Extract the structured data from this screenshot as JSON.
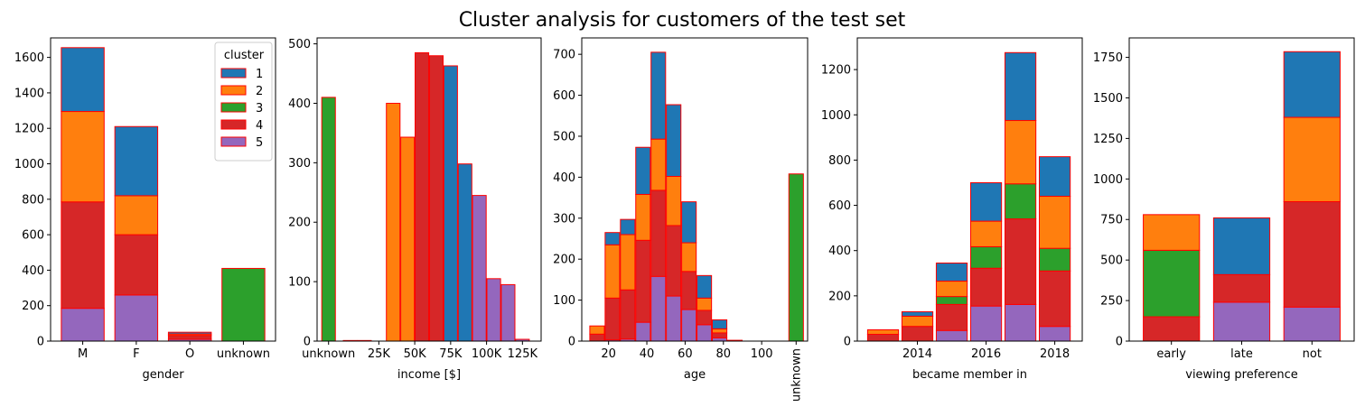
{
  "title": "Cluster analysis for customers of the test set",
  "colors": {
    "cluster_fill": [
      "#1f77b4",
      "#ff7f0e",
      "#2ca02c",
      "#d62728",
      "#9467bd"
    ],
    "bar_edge": "#ff0000"
  },
  "legend": {
    "title": "cluster",
    "entries": [
      "1",
      "2",
      "3",
      "4",
      "5"
    ],
    "placement": "upper right of first panel"
  },
  "chart_data": [
    {
      "type": "bar",
      "stacked": true,
      "xlabel": "gender",
      "categories": [
        "M",
        "F",
        "O",
        "unknown"
      ],
      "ylim": [
        0,
        1710
      ],
      "yticks": [
        0,
        200,
        400,
        600,
        800,
        1000,
        1200,
        1400,
        1600
      ],
      "series": [
        {
          "name": "5",
          "values": [
            185,
            260,
            10,
            0
          ]
        },
        {
          "name": "4",
          "values": [
            600,
            340,
            22,
            0
          ]
        },
        {
          "name": "3",
          "values": [
            0,
            0,
            0,
            410
          ]
        },
        {
          "name": "2",
          "values": [
            510,
            220,
            8,
            0
          ]
        },
        {
          "name": "1",
          "values": [
            360,
            390,
            10,
            0
          ]
        }
      ]
    },
    {
      "type": "bar",
      "stacked": true,
      "xlabel": "income [$]",
      "xticks": [
        "unknown",
        "25K",
        "50K",
        "75K",
        "100K",
        "125K"
      ],
      "xlim": [
        -18000,
        138000
      ],
      "ylim": [
        0,
        510
      ],
      "yticks": [
        0,
        100,
        200,
        300,
        400,
        500
      ],
      "bin_width": 9500,
      "bins": [
        {
          "x": -10000,
          "total": 410,
          "parts": [
            0,
            0,
            410,
            0,
            0
          ]
        },
        {
          "x": 5000,
          "total": 1,
          "parts": [
            0,
            0,
            0,
            0,
            1
          ]
        },
        {
          "x": 15000,
          "total": 1,
          "parts": [
            0,
            0,
            0,
            0,
            1
          ]
        },
        {
          "x": 35000,
          "total": 400,
          "parts": [
            0,
            400,
            0,
            0,
            0
          ]
        },
        {
          "x": 45000,
          "total": 343,
          "parts": [
            0,
            343,
            0,
            0,
            0
          ]
        },
        {
          "x": 55000,
          "total": 485,
          "parts": [
            0,
            0,
            0,
            485,
            0
          ]
        },
        {
          "x": 65000,
          "total": 480,
          "parts": [
            0,
            0,
            0,
            480,
            0
          ]
        },
        {
          "x": 75000,
          "total": 463,
          "parts": [
            463,
            0,
            0,
            0,
            0
          ]
        },
        {
          "x": 85000,
          "total": 298,
          "parts": [
            298,
            0,
            0,
            0,
            0
          ]
        },
        {
          "x": 95000,
          "total": 245,
          "parts": [
            0,
            0,
            0,
            0,
            245
          ]
        },
        {
          "x": 105000,
          "total": 105,
          "parts": [
            0,
            0,
            0,
            0,
            105
          ]
        },
        {
          "x": 115000,
          "total": 95,
          "parts": [
            0,
            0,
            0,
            0,
            95
          ]
        },
        {
          "x": 125000,
          "total": 3,
          "parts": [
            0,
            0,
            0,
            0,
            3
          ]
        }
      ]
    },
    {
      "type": "bar",
      "stacked": true,
      "xlabel": "age",
      "xticks": [
        "20",
        "40",
        "60",
        "80",
        "100",
        "unknown"
      ],
      "xlim": [
        6,
        124
      ],
      "ylim": [
        0,
        740
      ],
      "yticks": [
        0,
        100,
        200,
        300,
        400,
        500,
        600,
        700
      ],
      "bin_width": 7.6,
      "bins": [
        {
          "x": 14,
          "total": 37,
          "parts": [
            0,
            20,
            0,
            17,
            0
          ]
        },
        {
          "x": 22,
          "total": 265,
          "parts": [
            30,
            130,
            0,
            102,
            3
          ]
        },
        {
          "x": 30,
          "total": 297,
          "parts": [
            37,
            135,
            0,
            120,
            5
          ]
        },
        {
          "x": 38,
          "total": 473,
          "parts": [
            115,
            112,
            0,
            200,
            46
          ]
        },
        {
          "x": 46,
          "total": 705,
          "parts": [
            212,
            125,
            0,
            210,
            158
          ]
        },
        {
          "x": 54,
          "total": 577,
          "parts": [
            175,
            120,
            0,
            172,
            110
          ]
        },
        {
          "x": 62,
          "total": 340,
          "parts": [
            100,
            70,
            0,
            93,
            77
          ]
        },
        {
          "x": 70,
          "total": 160,
          "parts": [
            55,
            30,
            0,
            35,
            40
          ]
        },
        {
          "x": 78,
          "total": 52,
          "parts": [
            22,
            10,
            0,
            12,
            8
          ]
        },
        {
          "x": 86,
          "total": 2,
          "parts": [
            0,
            0,
            0,
            0,
            2
          ]
        },
        {
          "x": 118,
          "total": 408,
          "parts": [
            0,
            0,
            408,
            0,
            0
          ]
        }
      ]
    },
    {
      "type": "bar",
      "stacked": true,
      "xlabel": "became member in",
      "xticks": [
        "2014",
        "2016",
        "2018"
      ],
      "xlim": [
        2012.25,
        2018.8
      ],
      "ylim": [
        0,
        1340
      ],
      "yticks": [
        0,
        200,
        400,
        600,
        800,
        1000,
        1200
      ],
      "bin_width": 0.9,
      "bins": [
        {
          "x": 2013,
          "total": 50,
          "parts": [
            0,
            20,
            0,
            30,
            0
          ]
        },
        {
          "x": 2014,
          "total": 130,
          "parts": [
            20,
            45,
            0,
            65,
            0
          ]
        },
        {
          "x": 2015,
          "total": 345,
          "parts": [
            80,
            68,
            35,
            115,
            47
          ]
        },
        {
          "x": 2016,
          "total": 700,
          "parts": [
            170,
            113,
            95,
            167,
            155
          ]
        },
        {
          "x": 2017,
          "total": 1275,
          "parts": [
            300,
            280,
            155,
            378,
            162
          ]
        },
        {
          "x": 2018,
          "total": 815,
          "parts": [
            175,
            230,
            100,
            245,
            65
          ]
        }
      ]
    },
    {
      "type": "bar",
      "stacked": true,
      "xlabel": "viewing preference",
      "categories": [
        "early",
        "late",
        "not"
      ],
      "ylim": [
        0,
        1870
      ],
      "yticks": [
        0,
        250,
        500,
        750,
        1000,
        1250,
        1500,
        1750
      ],
      "series": [
        {
          "name": "5",
          "values": [
            0,
            240,
            210
          ]
        },
        {
          "name": "4",
          "values": [
            150,
            170,
            650
          ]
        },
        {
          "name": "3",
          "values": [
            410,
            0,
            0
          ]
        },
        {
          "name": "2",
          "values": [
            220,
            0,
            520
          ]
        },
        {
          "name": "1",
          "values": [
            0,
            350,
            405
          ]
        }
      ]
    }
  ]
}
